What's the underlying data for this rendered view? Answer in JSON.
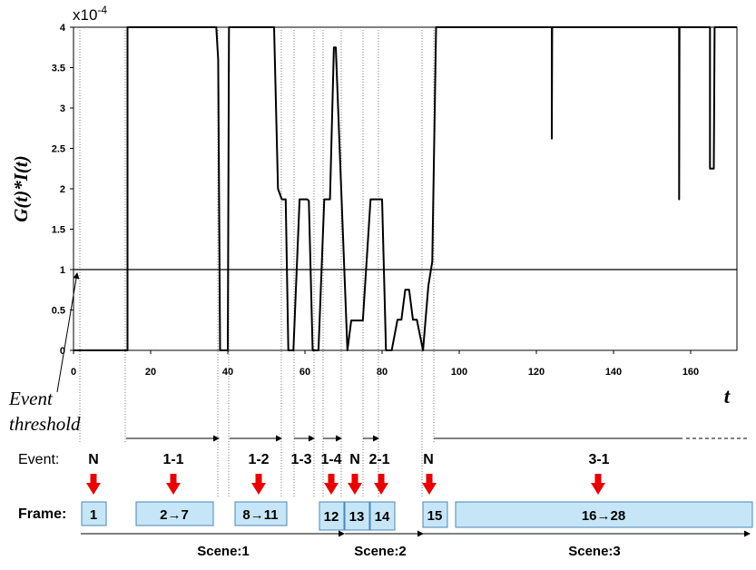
{
  "chart_data": {
    "type": "line",
    "ylabel": "G(t)*I(t)",
    "xlabel": "t",
    "y_exponent_base": "x10",
    "y_exponent_power": "-4",
    "xlim": [
      0,
      172
    ],
    "ylim": [
      0,
      4
    ],
    "xticks": [
      "0",
      "20",
      "40",
      "60",
      "80",
      "100",
      "120",
      "140",
      "160"
    ],
    "yticks": [
      "0",
      "0.5",
      "1",
      "1.5",
      "2",
      "2.5",
      "3",
      "3.5",
      "4"
    ],
    "threshold": 1,
    "grid": false,
    "points": [
      [
        0,
        0
      ],
      [
        14,
        0
      ],
      [
        14,
        4
      ],
      [
        37,
        4
      ],
      [
        37.5,
        3.6
      ],
      [
        38,
        0
      ],
      [
        40,
        0
      ],
      [
        40.3,
        4
      ],
      [
        52,
        4
      ],
      [
        53,
        2
      ],
      [
        54,
        1.87
      ],
      [
        55,
        1.87
      ],
      [
        55.7,
        0
      ],
      [
        57,
        0
      ],
      [
        58.6,
        1.87
      ],
      [
        60.6,
        1.87
      ],
      [
        61,
        1.85
      ],
      [
        62,
        0
      ],
      [
        63.5,
        0
      ],
      [
        65,
        1.87
      ],
      [
        66.5,
        1.87
      ],
      [
        67.5,
        3.75
      ],
      [
        68,
        3.75
      ],
      [
        69.5,
        1.87
      ],
      [
        71,
        0
      ],
      [
        72,
        0.37
      ],
      [
        75,
        0.37
      ],
      [
        77,
        1.87
      ],
      [
        80,
        1.87
      ],
      [
        81,
        0
      ],
      [
        82.5,
        0
      ],
      [
        84,
        0.38
      ],
      [
        85,
        0.38
      ],
      [
        86,
        0.75
      ],
      [
        87,
        0.75
      ],
      [
        88,
        0.38
      ],
      [
        89,
        0.38
      ],
      [
        90.6,
        0
      ],
      [
        92,
        0.8
      ],
      [
        93,
        1.1
      ],
      [
        94,
        4
      ],
      [
        124,
        4
      ],
      [
        124,
        2.62
      ],
      [
        124.1,
        4
      ],
      [
        157,
        4
      ],
      [
        157,
        1.87
      ],
      [
        157.1,
        4
      ],
      [
        165,
        4
      ],
      [
        165,
        2.25
      ],
      [
        166,
        2.25
      ],
      [
        166.2,
        4
      ],
      [
        172,
        4
      ]
    ]
  },
  "annotation": {
    "line1": "Event",
    "line2": "threshold"
  },
  "timeline": {
    "event_label": "Event:",
    "frame_label": "Frame:",
    "events": [
      "N",
      "1-1",
      "1-2",
      "1-3",
      "1-4",
      "N",
      "2-1",
      "N",
      "3-1"
    ],
    "frames": [
      "1",
      "2→7",
      "8→11",
      "12",
      "13",
      "14",
      "15",
      "16→28"
    ],
    "scenes": [
      "Scene:1",
      "Scene:2",
      "Scene:3"
    ]
  },
  "colors": {
    "frame_fill": "#c6e6f7",
    "arrow": "#e60000",
    "line": "#000000"
  }
}
